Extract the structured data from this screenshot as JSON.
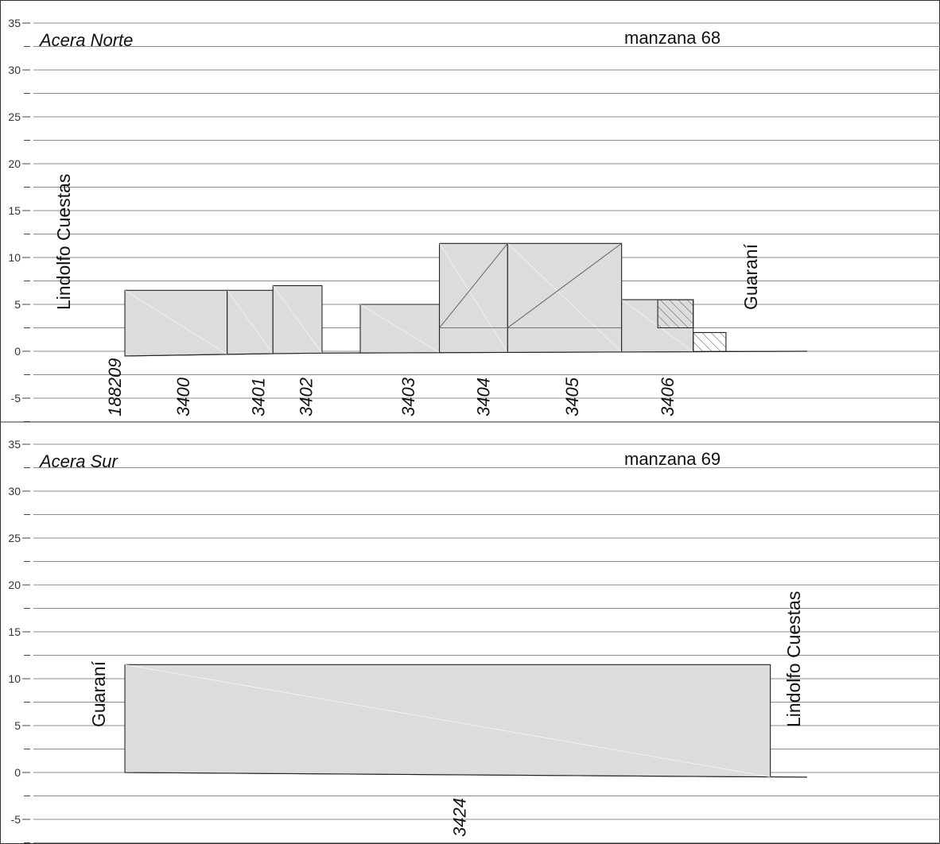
{
  "colors": {
    "building_fill": "#dcdcdc",
    "building_stroke": "#222222",
    "gridline": "#8c8c8c",
    "frame": "#333333",
    "hatch": "#555555"
  },
  "panels": [
    {
      "id": "norte",
      "heading": "Acera Norte",
      "manzana": "manzana 68",
      "left_street": "Lindolfo Cuestas",
      "right_street": "Guaraní",
      "y_ticks": [
        35,
        30,
        25,
        20,
        15,
        10,
        5,
        0,
        -5
      ],
      "ground": [
        [
          0,
          -0.5
        ],
        [
          26,
          -0.2
        ],
        [
          100,
          0
        ]
      ],
      "buildings": [
        {
          "x0": 0,
          "x1": 15,
          "height": 6.5
        },
        {
          "x0": 15,
          "x1": 21.7,
          "height": 6.5
        },
        {
          "x0": 21.7,
          "x1": 28.9,
          "height": 7
        },
        {
          "x0": 34.5,
          "x1": 46.1,
          "height": 5
        },
        {
          "x0": 46.1,
          "x1": 56.1,
          "height": 11.5
        },
        {
          "x0": 56.1,
          "x1": 72.8,
          "height": 11.5
        },
        {
          "x0": 72.8,
          "x1": 83.3,
          "height": 5.5
        },
        {
          "x0": 78.1,
          "x1": 83.3,
          "from": 2.5,
          "height": 5.5,
          "hatched": true
        },
        {
          "x0": 83.3,
          "x1": 88.1,
          "height": 2,
          "hatched": true
        }
      ],
      "padrones": [
        {
          "x": -1.5,
          "label": "188209"
        },
        {
          "x": 8.5,
          "label": "3400"
        },
        {
          "x": 19.5,
          "label": "3401"
        },
        {
          "x": 26.5,
          "label": "3402"
        },
        {
          "x": 41.5,
          "label": "3403"
        },
        {
          "x": 52.5,
          "label": "3404"
        },
        {
          "x": 65.5,
          "label": "3405"
        },
        {
          "x": 79.5,
          "label": "3406"
        }
      ]
    },
    {
      "id": "sur",
      "heading": "Acera Sur",
      "manzana": "manzana 69",
      "left_street": "Guaraní",
      "right_street": "Lindolfo Cuestas",
      "y_ticks": [
        35,
        30,
        25,
        20,
        15,
        10,
        5,
        0,
        -5
      ],
      "ground": [
        [
          0,
          0
        ],
        [
          100,
          -0.5
        ]
      ],
      "buildings": [
        {
          "x0": 0,
          "x1": 94.6,
          "height": 11.5
        }
      ],
      "padrones": [
        {
          "x": 49,
          "label": "3424"
        }
      ]
    }
  ]
}
